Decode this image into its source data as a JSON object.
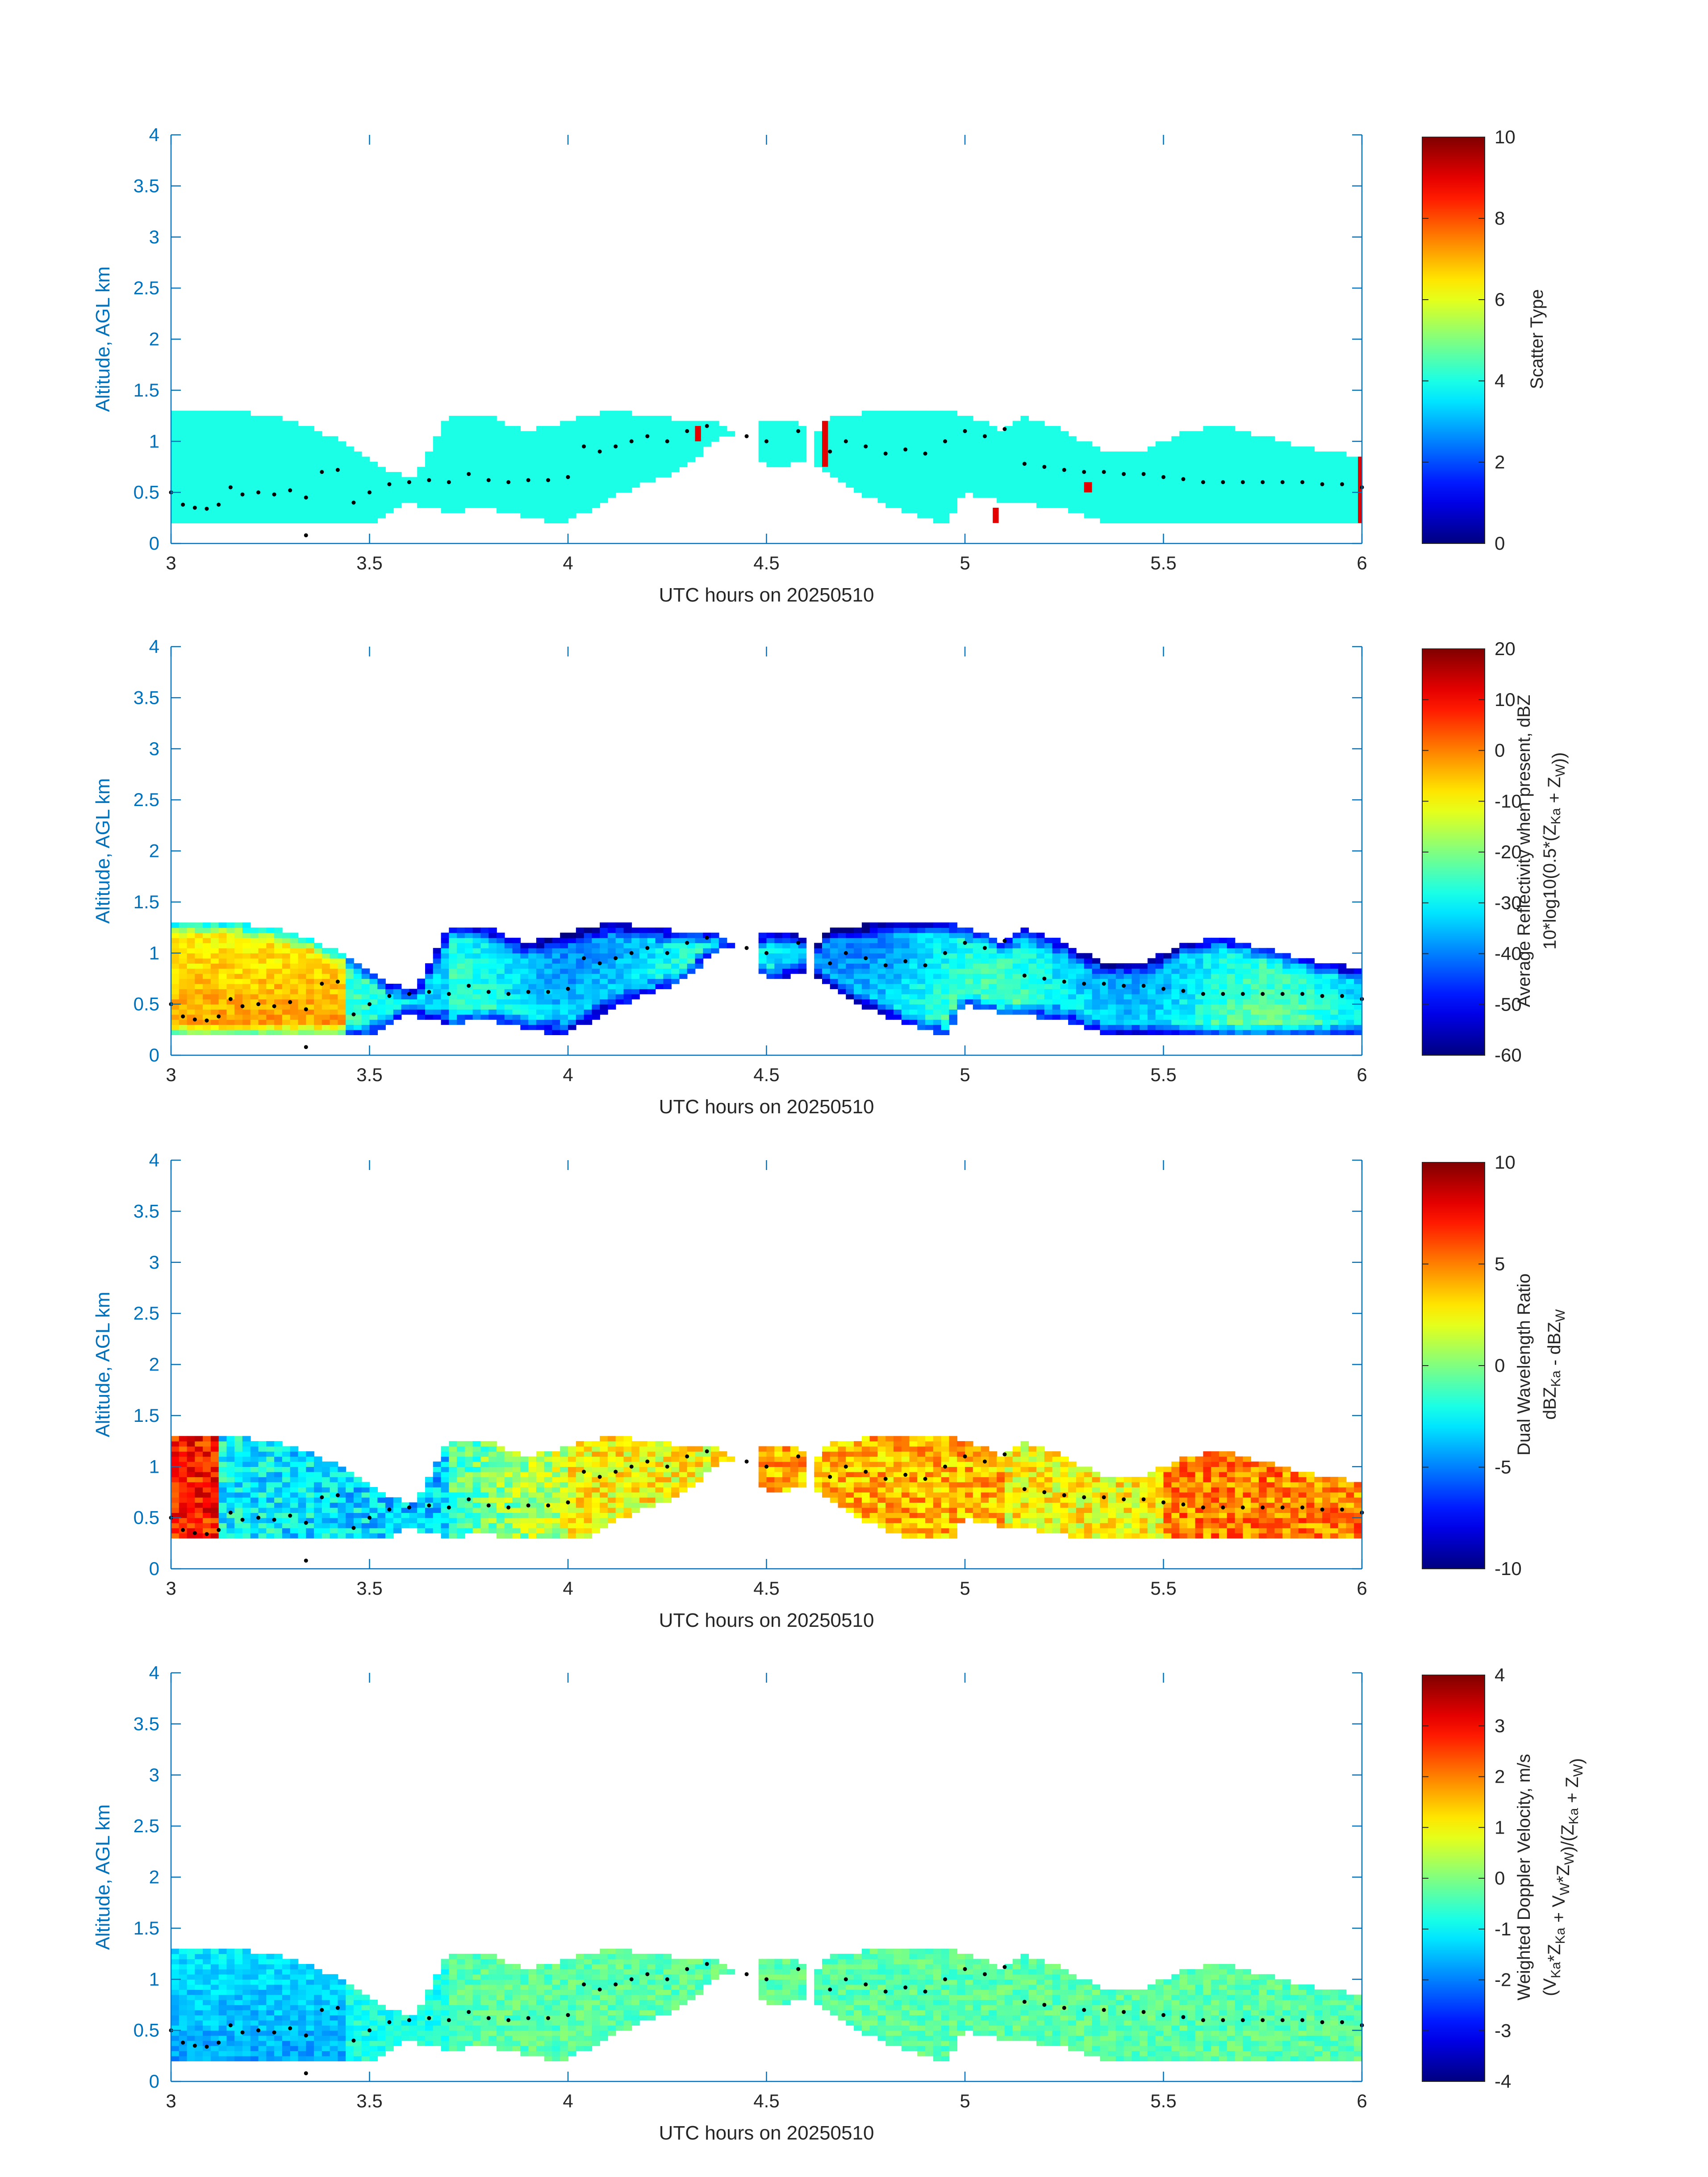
{
  "colors": {
    "axis": "#0072bd",
    "text": "#262626",
    "marker": "#000000",
    "empty": "#ffffff"
  },
  "chart_data": [
    {
      "type": "heatmap",
      "id": "scatter",
      "colormap": "jet",
      "xlabel": "UTC hours on 20250510",
      "ylabel": "Altitude, AGL km",
      "xlim": [
        3,
        6
      ],
      "ylim": [
        0,
        4
      ],
      "xticks": [
        "3",
        "3.5",
        "4",
        "4.5",
        "5",
        "5.5",
        "6"
      ],
      "yticks": [
        "0",
        "0.5",
        "1",
        "1.5",
        "2",
        "2.5",
        "3",
        "3.5",
        "4"
      ],
      "clim": [
        0,
        10
      ],
      "cticks": [
        "0",
        "2",
        "4",
        "6",
        "8",
        "10"
      ],
      "clabel": [
        "Scatter Type"
      ],
      "field": "Scatter type 4 (cyan) fills the cloud layer; isolated type 9 columns near 4.33, 4.65, 5.08, 5.32 and 6.0 h",
      "fill_value": 4,
      "spikes": [
        {
          "x0": 4.32,
          "x1": 4.335,
          "y0": 1.0,
          "y1": 1.15,
          "value": 9
        },
        {
          "x0": 4.64,
          "x1": 4.655,
          "y0": 0.75,
          "y1": 1.2,
          "value": 9
        },
        {
          "x0": 5.07,
          "x1": 5.085,
          "y0": 0.2,
          "y1": 0.35,
          "value": 9
        },
        {
          "x0": 5.3,
          "x1": 5.32,
          "y0": 0.5,
          "y1": 0.6,
          "value": 9
        },
        {
          "x0": 5.99,
          "x1": 6.0,
          "y0": 0.2,
          "y1": 0.85,
          "value": 9
        }
      ]
    },
    {
      "type": "heatmap",
      "id": "reflectivity",
      "colormap": "jet",
      "xlabel": "UTC hours on 20250510",
      "ylabel": "Altitude, AGL km",
      "xlim": [
        3,
        6
      ],
      "ylim": [
        0,
        4
      ],
      "xticks": [
        "3",
        "3.5",
        "4",
        "4.5",
        "5",
        "5.5",
        "6"
      ],
      "yticks": [
        "0",
        "0.5",
        "1",
        "1.5",
        "2",
        "2.5",
        "3",
        "3.5",
        "4"
      ],
      "clim": [
        -60,
        20
      ],
      "cticks": [
        "-60",
        "-50",
        "-40",
        "-30",
        "-20",
        "-10",
        "0",
        "10",
        "20"
      ],
      "clabel": [
        "Average Reflectivity when present, dBZ",
        "10*log10(0.5*(Z_Ka + Z_W))"
      ],
      "field": "High (0 to 10 dBZ) near 3.0-3.4 h low levels, decreasing to -50 dBZ at cloud edges"
    },
    {
      "type": "heatmap",
      "id": "dwr",
      "colormap": "jet",
      "xlabel": "UTC hours on 20250510",
      "ylabel": "Altitude, AGL km",
      "xlim": [
        3,
        6
      ],
      "ylim": [
        0,
        4
      ],
      "xticks": [
        "3",
        "3.5",
        "4",
        "4.5",
        "5",
        "5.5",
        "6"
      ],
      "yticks": [
        "0",
        "0.5",
        "1",
        "1.5",
        "2",
        "2.5",
        "3",
        "3.5",
        "4"
      ],
      "clim": [
        -10,
        10
      ],
      "cticks": [
        "-10",
        "-5",
        "0",
        "5",
        "10"
      ],
      "clabel": [
        "Dual Wavelength Ratio",
        "dBZ_Ka - dBZ_W"
      ],
      "field": "About 7 dB at 3.0-3.1 h, -3 dB near 3.3-3.7 h, 2 to 5 dB from 4.0 h onward"
    },
    {
      "type": "heatmap",
      "id": "doppler",
      "colormap": "jet",
      "xlabel": "UTC hours on 20250510",
      "ylabel": "Altitude, AGL km",
      "xlim": [
        3,
        6
      ],
      "ylim": [
        0,
        4
      ],
      "xticks": [
        "3",
        "3.5",
        "4",
        "4.5",
        "5",
        "5.5",
        "6"
      ],
      "yticks": [
        "0",
        "0.5",
        "1",
        "1.5",
        "2",
        "2.5",
        "3",
        "3.5",
        "4"
      ],
      "clim": [
        -4,
        4
      ],
      "cticks": [
        "-4",
        "-3",
        "-2",
        "-1",
        "0",
        "1",
        "2",
        "3",
        "4"
      ],
      "clabel": [
        "Weighted Doppler Velocity, m/s",
        "(V_Ka*Z_Ka + V_W*Z_W)/(Z_Ka + Z_W)"
      ],
      "field": "About -1.5 m/s near 3.0-3.4 h, around 0 m/s elsewhere"
    }
  ],
  "shared": {
    "cloud_top_km": [
      [
        3.0,
        1.3
      ],
      [
        3.15,
        1.3
      ],
      [
        3.25,
        1.25
      ],
      [
        3.35,
        1.15
      ],
      [
        3.45,
        0.95
      ],
      [
        3.55,
        0.7
      ],
      [
        3.62,
        0.65
      ],
      [
        3.7,
        1.25
      ],
      [
        3.8,
        1.25
      ],
      [
        3.9,
        1.1
      ],
      [
        4.0,
        1.2
      ],
      [
        4.1,
        1.3
      ],
      [
        4.2,
        1.25
      ],
      [
        4.3,
        1.2
      ],
      [
        4.38,
        1.2
      ],
      [
        4.43,
        1.05
      ],
      [
        4.5,
        1.2
      ],
      [
        4.58,
        1.2
      ],
      [
        4.62,
        1.05
      ],
      [
        4.66,
        1.25
      ],
      [
        4.8,
        1.3
      ],
      [
        4.95,
        1.3
      ],
      [
        5.05,
        1.2
      ],
      [
        5.1,
        1.1
      ],
      [
        5.15,
        1.25
      ],
      [
        5.25,
        1.1
      ],
      [
        5.35,
        0.9
      ],
      [
        5.45,
        0.9
      ],
      [
        5.55,
        1.1
      ],
      [
        5.65,
        1.15
      ],
      [
        5.75,
        1.05
      ],
      [
        5.85,
        0.95
      ],
      [
        6.0,
        0.85
      ]
    ],
    "cloud_base_km": [
      [
        3.0,
        0.2
      ],
      [
        3.5,
        0.2
      ],
      [
        3.6,
        0.4
      ],
      [
        3.7,
        0.3
      ],
      [
        3.8,
        0.35
      ],
      [
        3.9,
        0.25
      ],
      [
        4.0,
        0.2
      ],
      [
        4.1,
        0.45
      ],
      [
        4.2,
        0.6
      ],
      [
        4.3,
        0.75
      ],
      [
        4.35,
        0.95
      ],
      [
        4.4,
        1.1
      ],
      [
        4.5,
        0.75
      ],
      [
        4.6,
        0.8
      ],
      [
        4.7,
        0.55
      ],
      [
        4.85,
        0.3
      ],
      [
        4.95,
        0.2
      ],
      [
        5.0,
        0.5
      ],
      [
        5.1,
        0.4
      ],
      [
        5.25,
        0.35
      ],
      [
        5.35,
        0.2
      ],
      [
        5.6,
        0.2
      ],
      [
        6.0,
        0.2
      ]
    ],
    "cloud_gaps": [
      [
        4.42,
        4.47
      ],
      [
        4.6,
        4.62
      ]
    ],
    "cloud_base_markers_km": [
      [
        3.0,
        0.5
      ],
      [
        3.03,
        0.38
      ],
      [
        3.06,
        0.35
      ],
      [
        3.09,
        0.34
      ],
      [
        3.12,
        0.38
      ],
      [
        3.15,
        0.55
      ],
      [
        3.18,
        0.48
      ],
      [
        3.22,
        0.5
      ],
      [
        3.26,
        0.48
      ],
      [
        3.3,
        0.52
      ],
      [
        3.34,
        0.45
      ],
      [
        3.38,
        0.7
      ],
      [
        3.42,
        0.72
      ],
      [
        3.46,
        0.4
      ],
      [
        3.5,
        0.5
      ],
      [
        3.55,
        0.58
      ],
      [
        3.6,
        0.6
      ],
      [
        3.65,
        0.62
      ],
      [
        3.7,
        0.6
      ],
      [
        3.75,
        0.68
      ],
      [
        3.8,
        0.62
      ],
      [
        3.85,
        0.6
      ],
      [
        3.9,
        0.62
      ],
      [
        3.95,
        0.62
      ],
      [
        4.0,
        0.65
      ],
      [
        4.04,
        0.95
      ],
      [
        4.08,
        0.9
      ],
      [
        4.12,
        0.95
      ],
      [
        4.16,
        1.0
      ],
      [
        4.2,
        1.05
      ],
      [
        4.25,
        1.0
      ],
      [
        4.3,
        1.1
      ],
      [
        4.35,
        1.15
      ],
      [
        4.45,
        1.05
      ],
      [
        4.5,
        1.0
      ],
      [
        4.58,
        1.1
      ],
      [
        4.66,
        0.9
      ],
      [
        4.7,
        1.0
      ],
      [
        4.75,
        0.95
      ],
      [
        4.8,
        0.88
      ],
      [
        4.85,
        0.92
      ],
      [
        4.9,
        0.88
      ],
      [
        4.95,
        1.0
      ],
      [
        5.0,
        1.1
      ],
      [
        5.05,
        1.05
      ],
      [
        5.1,
        1.12
      ],
      [
        5.15,
        0.78
      ],
      [
        5.2,
        0.75
      ],
      [
        5.25,
        0.72
      ],
      [
        5.3,
        0.7
      ],
      [
        5.35,
        0.7
      ],
      [
        5.4,
        0.68
      ],
      [
        5.45,
        0.68
      ],
      [
        5.5,
        0.65
      ],
      [
        5.55,
        0.63
      ],
      [
        5.6,
        0.6
      ],
      [
        5.65,
        0.6
      ],
      [
        5.7,
        0.6
      ],
      [
        5.75,
        0.6
      ],
      [
        5.8,
        0.6
      ],
      [
        5.85,
        0.6
      ],
      [
        5.9,
        0.58
      ],
      [
        5.95,
        0.58
      ],
      [
        6.0,
        0.55
      ],
      [
        3.34,
        0.08
      ]
    ]
  }
}
